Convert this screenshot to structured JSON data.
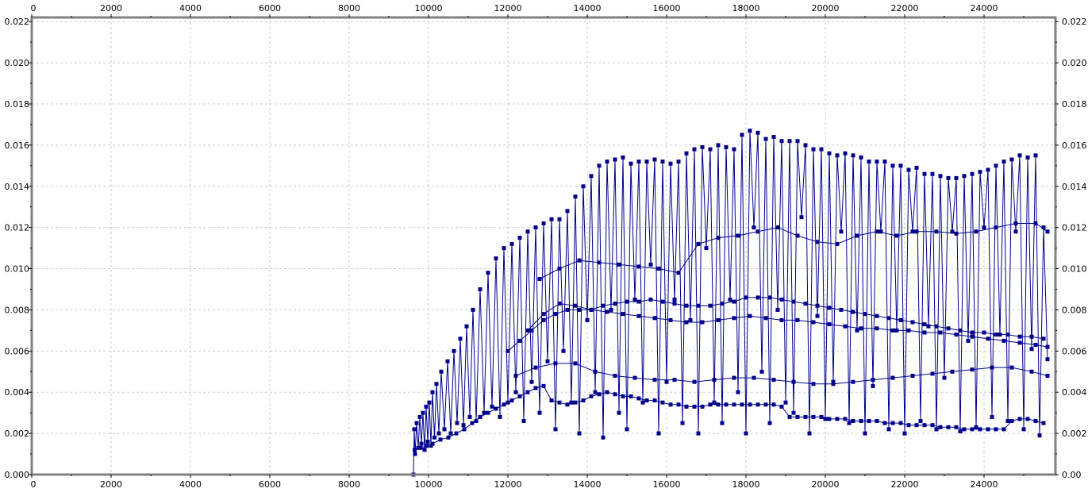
{
  "chart_data": {
    "type": "line",
    "title": "",
    "xlabel": "",
    "ylabel": "",
    "xlim": [
      0,
      25800
    ],
    "ylim": [
      0,
      0.0222
    ],
    "x_ticks": [
      "0",
      "2000",
      "4000",
      "6000",
      "8000",
      "10000",
      "12000",
      "14000",
      "16000",
      "18000",
      "20000",
      "22000",
      "24000"
    ],
    "y_ticks": [
      "0.000",
      "0.002",
      "0.004",
      "0.006",
      "0.008",
      "0.010",
      "0.012",
      "0.014",
      "0.016",
      "0.018",
      "0.020",
      "0.022"
    ],
    "y_ticks_right": [
      "0.00",
      "0.002",
      "0.004",
      "0.006",
      "0.008",
      "0.010",
      "0.012",
      "0.014",
      "0.016",
      "0.018",
      "0.020",
      "0.022"
    ],
    "grid": true,
    "series_color": "#00008b",
    "series": [
      {
        "name": "",
        "x": [
          9620,
          9640,
          9660,
          9700,
          9740,
          9780,
          9820,
          9860,
          9900,
          9940,
          9980,
          10020,
          10060,
          10100,
          10150,
          10200,
          10260,
          10320,
          10400,
          10480,
          10560,
          10640,
          10720,
          10800,
          10880,
          10960,
          11040,
          11120,
          11200,
          11300,
          11400,
          11500,
          11600,
          11700,
          11800,
          11900,
          12000,
          12100,
          12200,
          12300,
          12400,
          12500,
          12600,
          12700,
          12800,
          12900,
          13000,
          13100,
          13200,
          13300,
          13400,
          13500,
          13600,
          13700,
          13800,
          13900,
          14000,
          14100,
          14200,
          14300,
          14400,
          14500,
          14600,
          14700,
          14800,
          14900,
          15000,
          15100,
          15200,
          15300,
          15400,
          15500,
          15600,
          15700,
          15800,
          15900,
          16000,
          16100,
          16200,
          16300,
          16400,
          16500,
          16600,
          16700,
          16800,
          16900,
          17000,
          17100,
          17200,
          17300,
          17400,
          17500,
          17600,
          17700,
          17800,
          17900,
          18000,
          18100,
          18200,
          18300,
          18400,
          18500,
          18600,
          18700,
          18800,
          18900,
          19000,
          19100,
          19200,
          19300,
          19400,
          19500,
          19600,
          19700,
          19800,
          19900,
          20000,
          20100,
          20200,
          20300,
          20400,
          20500,
          20600,
          20700,
          20800,
          20900,
          21000,
          21100,
          21200,
          21300,
          21400,
          21500,
          21600,
          21700,
          21800,
          21900,
          22000,
          22100,
          22200,
          22300,
          22400,
          22500,
          22600,
          22700,
          22800,
          22900,
          23000,
          23100,
          23200,
          23300,
          23400,
          23500,
          23600,
          23700,
          23800,
          23900,
          24000,
          24100,
          24200,
          24300,
          24400,
          24500,
          24600,
          24700,
          24800,
          24900,
          25000,
          25100,
          25200,
          25300,
          25400,
          25500,
          25600
        ],
        "values": [
          0.0,
          0.0022,
          0.001,
          0.0025,
          0.0013,
          0.0028,
          0.0015,
          0.003,
          0.0012,
          0.0033,
          0.0016,
          0.0035,
          0.0014,
          0.004,
          0.0018,
          0.0044,
          0.002,
          0.005,
          0.0022,
          0.0055,
          0.002,
          0.006,
          0.0025,
          0.0066,
          0.0024,
          0.0072,
          0.0028,
          0.008,
          0.0026,
          0.009,
          0.003,
          0.0098,
          0.0033,
          0.0105,
          0.0028,
          0.011,
          0.0035,
          0.0112,
          0.004,
          0.0115,
          0.0026,
          0.0118,
          0.0045,
          0.012,
          0.003,
          0.0122,
          0.0055,
          0.0124,
          0.0022,
          0.0124,
          0.006,
          0.0128,
          0.0035,
          0.0135,
          0.002,
          0.014,
          0.0075,
          0.0145,
          0.004,
          0.015,
          0.0018,
          0.0152,
          0.008,
          0.0153,
          0.003,
          0.0154,
          0.0022,
          0.0151,
          0.0085,
          0.0152,
          0.0035,
          0.0152,
          0.0102,
          0.0153,
          0.002,
          0.0152,
          0.0045,
          0.0151,
          0.0085,
          0.0152,
          0.0025,
          0.0156,
          0.0075,
          0.0158,
          0.002,
          0.0159,
          0.011,
          0.0158,
          0.0035,
          0.016,
          0.0025,
          0.0159,
          0.0085,
          0.0158,
          0.004,
          0.0165,
          0.002,
          0.0167,
          0.012,
          0.0166,
          0.005,
          0.0163,
          0.0025,
          0.0164,
          0.008,
          0.0162,
          0.0035,
          0.0162,
          0.003,
          0.0162,
          0.0125,
          0.016,
          0.002,
          0.0158,
          0.0077,
          0.0158,
          0.0027,
          0.0156,
          0.0045,
          0.0155,
          0.0118,
          0.0156,
          0.0025,
          0.0155,
          0.007,
          0.0154,
          0.002,
          0.0152,
          0.0043,
          0.0152,
          0.0118,
          0.0152,
          0.0022,
          0.015,
          0.007,
          0.015,
          0.002,
          0.0148,
          0.0118,
          0.0149,
          0.0026,
          0.0146,
          0.0072,
          0.0146,
          0.0022,
          0.0145,
          0.0047,
          0.0144,
          0.0118,
          0.0144,
          0.0021,
          0.0145,
          0.0065,
          0.0146,
          0.0023,
          0.0147,
          0.012,
          0.0148,
          0.0028,
          0.015,
          0.0068,
          0.0152,
          0.0026,
          0.0153,
          0.0118,
          0.0155,
          0.0022,
          0.0154,
          0.0061,
          0.0155,
          0.0019,
          0.012,
          0.0056
        ]
      },
      {
        "name": "",
        "x": [
          9650,
          9800,
          9950,
          10100,
          10300,
          10500,
          10700,
          10900,
          11100,
          11300,
          11500,
          11700,
          11900,
          12100,
          12300,
          12500,
          12700,
          12900,
          13100,
          13300,
          13500,
          13700,
          13900,
          14100,
          14300,
          14500,
          14700,
          14900,
          15100,
          15300,
          15500,
          15700,
          15900,
          16100,
          16300,
          16500,
          16700,
          16900,
          17100,
          17300,
          17500,
          17700,
          17900,
          18100,
          18300,
          18500,
          18700,
          18900,
          19100,
          19300,
          19500,
          19700,
          19900,
          20100,
          20300,
          20500,
          20700,
          20900,
          21100,
          21300,
          21500,
          21700,
          21900,
          22100,
          22300,
          22500,
          22700,
          22900,
          23100,
          23300,
          23500,
          23700,
          23900,
          24100,
          24300,
          24500,
          24700,
          24900,
          25100,
          25300,
          25500
        ],
        "values": [
          0.0012,
          0.0013,
          0.0014,
          0.0015,
          0.0017,
          0.0018,
          0.002,
          0.0022,
          0.0025,
          0.0028,
          0.003,
          0.0032,
          0.0034,
          0.0036,
          0.0038,
          0.004,
          0.0042,
          0.0043,
          0.0036,
          0.0035,
          0.0034,
          0.0035,
          0.0036,
          0.0038,
          0.0039,
          0.004,
          0.0039,
          0.0038,
          0.0038,
          0.0037,
          0.0036,
          0.0036,
          0.0035,
          0.0034,
          0.0034,
          0.0033,
          0.0033,
          0.0033,
          0.0034,
          0.0034,
          0.0034,
          0.0034,
          0.0034,
          0.0034,
          0.0034,
          0.0034,
          0.0034,
          0.0033,
          0.0028,
          0.0028,
          0.0028,
          0.0028,
          0.0028,
          0.0027,
          0.0027,
          0.0027,
          0.0026,
          0.0026,
          0.0026,
          0.0026,
          0.0025,
          0.0025,
          0.0025,
          0.0024,
          0.0024,
          0.0024,
          0.0024,
          0.0023,
          0.0023,
          0.0023,
          0.0022,
          0.0022,
          0.0022,
          0.0022,
          0.0022,
          0.0022,
          0.0026,
          0.0027,
          0.0027,
          0.0026,
          0.0025
        ]
      },
      {
        "name": "",
        "x": [
          12000,
          12300,
          12600,
          12900,
          13200,
          13500,
          13800,
          14100,
          14400,
          14700,
          15000,
          15300,
          15600,
          15900,
          16200,
          16500,
          16800,
          17100,
          17400,
          17700,
          18000,
          18300,
          18600,
          18900,
          19200,
          19500,
          19800,
          20100,
          20400,
          20700,
          21000,
          21300,
          21600,
          21900,
          22200,
          22500,
          22800,
          23100,
          23400,
          23700,
          24000,
          24300,
          24600,
          24900,
          25200,
          25500
        ],
        "values": [
          0.006,
          0.0065,
          0.007,
          0.0075,
          0.0078,
          0.008,
          0.008,
          0.008,
          0.0082,
          0.0083,
          0.0084,
          0.0084,
          0.0085,
          0.0084,
          0.0083,
          0.0082,
          0.0082,
          0.0082,
          0.0083,
          0.0084,
          0.0086,
          0.0086,
          0.0086,
          0.0085,
          0.0084,
          0.0083,
          0.0082,
          0.0081,
          0.008,
          0.0079,
          0.0078,
          0.0077,
          0.0076,
          0.0075,
          0.0074,
          0.0073,
          0.0072,
          0.0071,
          0.007,
          0.0069,
          0.0069,
          0.0068,
          0.0068,
          0.0067,
          0.0067,
          0.0066
        ]
      },
      {
        "name": "",
        "x": [
          12500,
          12900,
          13300,
          13700,
          14100,
          14500,
          14900,
          15300,
          15700,
          16100,
          16500,
          16900,
          17300,
          17700,
          18100,
          18500,
          18900,
          19300,
          19700,
          20100,
          20500,
          20900,
          21300,
          21700,
          22100,
          22500,
          22900,
          23300,
          23700,
          24100,
          24500,
          24900,
          25300,
          25600
        ],
        "values": [
          0.007,
          0.0078,
          0.0083,
          0.0082,
          0.008,
          0.0079,
          0.0078,
          0.0077,
          0.0076,
          0.0075,
          0.0074,
          0.0074,
          0.0075,
          0.0076,
          0.0077,
          0.0076,
          0.0075,
          0.0075,
          0.0074,
          0.0073,
          0.0072,
          0.0071,
          0.0071,
          0.007,
          0.007,
          0.0069,
          0.0069,
          0.0068,
          0.0067,
          0.0066,
          0.0065,
          0.0064,
          0.0063,
          0.0062
        ]
      },
      {
        "name": "",
        "x": [
          12800,
          13300,
          13800,
          14300,
          14800,
          15300,
          15800,
          16300,
          16800,
          17300,
          17800,
          18300,
          18800,
          19300,
          19800,
          20300,
          20800,
          21300,
          21800,
          22300,
          22800,
          23300,
          23800,
          24300,
          24800,
          25300,
          25600
        ],
        "values": [
          0.0095,
          0.01,
          0.0104,
          0.0103,
          0.0102,
          0.0101,
          0.01,
          0.0098,
          0.0112,
          0.0115,
          0.0116,
          0.0118,
          0.012,
          0.0116,
          0.0113,
          0.0112,
          0.0116,
          0.0118,
          0.0116,
          0.0118,
          0.0118,
          0.0117,
          0.0118,
          0.012,
          0.0122,
          0.0122,
          0.0118
        ]
      },
      {
        "name": "",
        "x": [
          12200,
          12700,
          13200,
          13700,
          14200,
          14700,
          15200,
          15700,
          16200,
          16700,
          17200,
          17700,
          18200,
          18700,
          19200,
          19700,
          20200,
          20700,
          21200,
          21700,
          22200,
          22700,
          23200,
          23700,
          24200,
          24700,
          25200,
          25600
        ],
        "values": [
          0.0048,
          0.0052,
          0.0054,
          0.0054,
          0.005,
          0.0048,
          0.0047,
          0.0046,
          0.0046,
          0.0045,
          0.0046,
          0.0047,
          0.0047,
          0.0046,
          0.0045,
          0.0044,
          0.0044,
          0.0045,
          0.0046,
          0.0047,
          0.0048,
          0.0049,
          0.005,
          0.0051,
          0.0052,
          0.0052,
          0.005,
          0.0048
        ]
      }
    ]
  }
}
